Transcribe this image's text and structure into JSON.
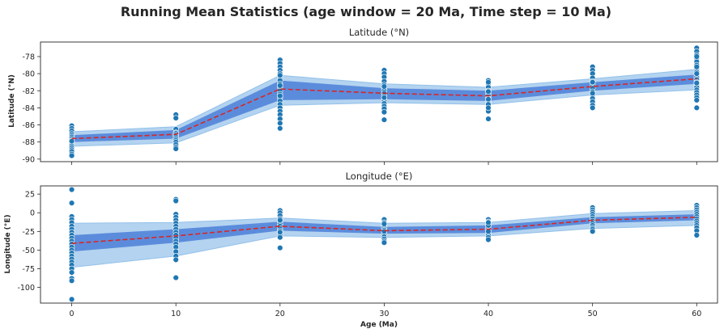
{
  "suptitle": "Running Mean Statistics (age window = 20 Ma, Time step = 10 Ma)",
  "colors": {
    "points": "#1f77b4",
    "points_edge": "#ffffff",
    "band_outer": "#93c1ea",
    "band_inner": "#3e74d6",
    "mean_line": "#d62728",
    "axes": "#262626"
  },
  "chart_data": [
    {
      "type": "scatter",
      "title": "Latitude (°N)",
      "xlabel": "",
      "ylabel": "Latitude (°N)",
      "xlim": [
        -3,
        62
      ],
      "ylim": [
        -90.3,
        -76.3
      ],
      "xticks": [
        0,
        10,
        20,
        30,
        40,
        50,
        60
      ],
      "yticks": [
        -90,
        -88,
        -86,
        -84,
        -82,
        -80,
        -78
      ],
      "show_xticklabels": false,
      "grid": false,
      "mean": {
        "x": [
          0,
          10,
          20,
          30,
          40,
          50,
          60
        ],
        "y": [
          -87.6,
          -87.1,
          -81.8,
          -82.3,
          -82.6,
          -81.5,
          -80.6
        ]
      },
      "band_inner": {
        "x": [
          0,
          10,
          20,
          30,
          40,
          50,
          60
        ],
        "lower": [
          -88.0,
          -87.6,
          -83.1,
          -83.0,
          -83.2,
          -82.0,
          -81.2
        ],
        "upper": [
          -87.2,
          -86.6,
          -80.8,
          -81.7,
          -82.0,
          -81.0,
          -80.1
        ]
      },
      "band_outer": {
        "x": [
          0,
          10,
          20,
          30,
          40,
          50,
          60
        ],
        "lower": [
          -88.5,
          -88.1,
          -83.7,
          -83.4,
          -83.6,
          -82.5,
          -81.9
        ],
        "upper": [
          -86.8,
          -86.2,
          -80.2,
          -81.2,
          -81.6,
          -80.6,
          -79.5
        ]
      },
      "points": {
        "x": [
          0,
          0,
          0,
          0,
          0,
          0,
          0,
          0,
          0,
          0,
          0,
          0,
          0,
          0,
          0,
          0,
          0,
          0,
          10,
          10,
          10,
          10,
          10,
          10,
          10,
          10,
          10,
          10,
          10,
          10,
          10,
          20,
          20,
          20,
          20,
          20,
          20,
          20,
          20,
          20,
          20,
          20,
          20,
          20,
          20,
          20,
          20,
          20,
          20,
          20,
          20,
          20,
          20,
          20,
          30,
          30,
          30,
          30,
          30,
          30,
          30,
          30,
          30,
          30,
          30,
          30,
          30,
          30,
          30,
          30,
          30,
          30,
          40,
          40,
          40,
          40,
          40,
          40,
          40,
          40,
          40,
          40,
          40,
          40,
          40,
          40,
          40,
          40,
          40,
          40,
          50,
          50,
          50,
          50,
          50,
          50,
          50,
          50,
          50,
          50,
          50,
          50,
          50,
          50,
          50,
          60,
          60,
          60,
          60,
          60,
          60,
          60,
          60,
          60,
          60,
          60,
          60,
          60,
          60,
          60,
          60,
          60,
          60,
          60,
          60,
          60,
          60,
          60,
          60
        ],
        "y": [
          -86.1,
          -86.4,
          -86.7,
          -87.0,
          -87.2,
          -87.4,
          -87.6,
          -87.8,
          -88.0,
          -88.1,
          -88.3,
          -88.5,
          -88.7,
          -88.9,
          -89.1,
          -89.4,
          -89.6,
          -87.9,
          -84.8,
          -85.2,
          -86.5,
          -86.9,
          -87.0,
          -87.2,
          -87.4,
          -87.6,
          -87.8,
          -88.0,
          -88.3,
          -88.6,
          -88.8,
          -78.4,
          -78.8,
          -79.2,
          -79.6,
          -80.0,
          -80.4,
          -80.8,
          -81.2,
          -81.6,
          -82.0,
          -82.4,
          -82.8,
          -83.2,
          -83.6,
          -84.0,
          -84.4,
          -84.8,
          -85.3,
          -85.8,
          -86.4,
          -80.2,
          -81.4,
          -82.6,
          -79.6,
          -80.0,
          -80.4,
          -80.9,
          -81.3,
          -81.7,
          -82.0,
          -82.3,
          -82.6,
          -82.9,
          -83.2,
          -83.5,
          -83.8,
          -84.1,
          -84.5,
          -85.4,
          -81.5,
          -82.8,
          -80.8,
          -81.2,
          -81.6,
          -82.0,
          -82.3,
          -82.6,
          -82.9,
          -83.2,
          -83.5,
          -83.8,
          -84.1,
          -84.4,
          -85.3,
          -81.0,
          -82.1,
          -83.0,
          -83.6,
          -84.0,
          -79.2,
          -79.6,
          -80.0,
          -80.5,
          -80.9,
          -81.3,
          -81.7,
          -82.1,
          -82.5,
          -82.9,
          -83.3,
          -83.7,
          -84.0,
          -81.0,
          -82.3,
          -77.0,
          -77.4,
          -77.8,
          -78.2,
          -78.6,
          -79.0,
          -79.4,
          -79.8,
          -80.1,
          -80.4,
          -80.7,
          -81.0,
          -81.3,
          -81.6,
          -81.9,
          -82.2,
          -82.5,
          -82.8,
          -83.1,
          -84.0,
          -80.0,
          -81.1,
          -78.0,
          -79.2
        ]
      }
    },
    {
      "type": "scatter",
      "title": "Longitude (°E)",
      "xlabel": "Age (Ma)",
      "ylabel": "Longitude (°E)",
      "xlim": [
        -3,
        62
      ],
      "ylim": [
        -121,
        36
      ],
      "xticks": [
        0,
        10,
        20,
        30,
        40,
        50,
        60
      ],
      "yticks": [
        25,
        0,
        -25,
        -50,
        -75,
        -100
      ],
      "show_xticklabels": true,
      "grid": false,
      "mean": {
        "x": [
          0,
          10,
          20,
          30,
          40,
          50,
          60
        ],
        "y": [
          -41,
          -31,
          -18,
          -24,
          -22,
          -10,
          -6
        ]
      },
      "band_inner": {
        "x": [
          0,
          10,
          20,
          30,
          40,
          50,
          60
        ],
        "lower": [
          -52,
          -40,
          -24,
          -28,
          -27,
          -14,
          -10
        ],
        "upper": [
          -30,
          -22,
          -12,
          -19,
          -17,
          -6,
          -2
        ]
      },
      "band_outer": {
        "x": [
          0,
          10,
          20,
          30,
          40,
          50,
          60
        ],
        "lower": [
          -73,
          -58,
          -31,
          -33,
          -31,
          -21,
          -17
        ],
        "upper": [
          -14,
          -13,
          -7,
          -14,
          -13,
          -1,
          3
        ]
      },
      "points": {
        "x": [
          0,
          0,
          0,
          0,
          0,
          0,
          0,
          0,
          0,
          0,
          0,
          0,
          0,
          0,
          0,
          0,
          0,
          0,
          0,
          0,
          0,
          0,
          0,
          0,
          10,
          10,
          10,
          10,
          10,
          10,
          10,
          10,
          10,
          10,
          10,
          10,
          10,
          10,
          10,
          10,
          10,
          10,
          20,
          20,
          20,
          20,
          20,
          20,
          20,
          20,
          20,
          20,
          20,
          20,
          20,
          20,
          20,
          30,
          30,
          30,
          30,
          30,
          30,
          30,
          30,
          30,
          30,
          30,
          30,
          30,
          40,
          40,
          40,
          40,
          40,
          40,
          40,
          40,
          40,
          40,
          40,
          40,
          40,
          50,
          50,
          50,
          50,
          50,
          50,
          50,
          50,
          50,
          50,
          50,
          50,
          60,
          60,
          60,
          60,
          60,
          60,
          60,
          60,
          60,
          60,
          60,
          60,
          60
        ],
        "y": [
          31,
          13,
          -5,
          -9,
          -13,
          -18,
          -22,
          -26,
          -30,
          -34,
          -38,
          -42,
          -46,
          -50,
          -54,
          -58,
          -62,
          -66,
          -70,
          -75,
          -80,
          -88,
          -91,
          -116,
          18,
          16,
          -2,
          -6,
          -10,
          -14,
          -18,
          -22,
          -26,
          -30,
          -34,
          -38,
          -42,
          -46,
          -52,
          -58,
          -63,
          -87,
          3,
          0,
          -4,
          -8,
          -12,
          -15,
          -18,
          -21,
          -24,
          -27,
          -30,
          -33,
          -26,
          -47,
          -10,
          -9,
          -13,
          -17,
          -20,
          -23,
          -26,
          -29,
          -32,
          -35,
          -38,
          -40,
          -15,
          -25,
          -9,
          -12,
          -15,
          -18,
          -21,
          -24,
          -27,
          -30,
          -33,
          -36,
          -17,
          -25,
          -13,
          7,
          4,
          1,
          -2,
          -5,
          -8,
          -11,
          -14,
          -17,
          -20,
          -22,
          -25,
          10,
          7,
          4,
          1,
          -2,
          -5,
          -8,
          -11,
          -14,
          -17,
          -20,
          -24,
          -30
        ]
      }
    }
  ]
}
